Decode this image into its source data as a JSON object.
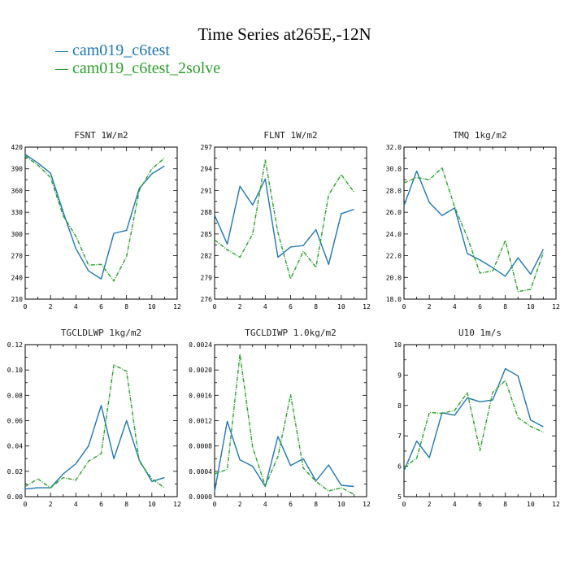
{
  "page": {
    "title": "Time Series at265E,-12N",
    "legend": [
      {
        "label": "cam019_c6test",
        "color": "#1f77b4"
      },
      {
        "label": "cam019_c6test_2solve",
        "color": "#2ca02c"
      }
    ]
  },
  "chart_data": [
    {
      "type": "line",
      "title": "FSNT   1W/m2",
      "x": [
        0,
        1,
        2,
        3,
        4,
        5,
        6,
        7,
        8,
        9,
        10,
        11
      ],
      "xlim": [
        0,
        12
      ],
      "xticks": [
        0,
        2,
        4,
        6,
        8,
        10,
        12
      ],
      "xticklabels": [
        "0",
        "2",
        "4",
        "6",
        "8",
        "10",
        "12"
      ],
      "ylim": [
        210,
        420
      ],
      "yticks": [
        210,
        240,
        270,
        300,
        330,
        360,
        390,
        420
      ],
      "yticklabels": [
        "210",
        "240",
        "270",
        "300",
        "330",
        "360",
        "390",
        "420"
      ],
      "series": [
        {
          "name": "cam019_c6test",
          "color": "#1f77b4",
          "dashed": false,
          "values": [
            410,
            398,
            384,
            330,
            280,
            249,
            238,
            301,
            305,
            363,
            383,
            394
          ]
        },
        {
          "name": "cam019_c6test_2solve",
          "color": "#2ca02c",
          "dashed": true,
          "values": [
            408,
            395,
            378,
            325,
            297,
            257,
            258,
            235,
            269,
            360,
            390,
            405
          ]
        }
      ]
    },
    {
      "type": "line",
      "title": "FLNT   1W/m2",
      "x": [
        0,
        1,
        2,
        3,
        4,
        5,
        6,
        7,
        8,
        9,
        10,
        11
      ],
      "xlim": [
        0,
        12
      ],
      "xticks": [
        0,
        2,
        4,
        6,
        8,
        10,
        12
      ],
      "xticklabels": [
        "0",
        "2",
        "4",
        "6",
        "8",
        "10",
        "12"
      ],
      "ylim": [
        276,
        297
      ],
      "yticks": [
        276,
        279,
        282,
        285,
        288,
        291,
        294,
        297
      ],
      "yticklabels": [
        "276",
        "279",
        "282",
        "285",
        "288",
        "291",
        "294",
        "297"
      ],
      "series": [
        {
          "name": "cam019_c6test",
          "color": "#1f77b4",
          "dashed": false,
          "values": [
            287.6,
            283.6,
            291.6,
            289,
            292.6,
            281.8,
            283.2,
            283.4,
            285.6,
            280.8,
            287.8,
            288.4
          ]
        },
        {
          "name": "cam019_c6test_2solve",
          "color": "#2ca02c",
          "dashed": true,
          "values": [
            284.2,
            282.8,
            281.8,
            285,
            295.2,
            285.2,
            278.8,
            282.6,
            280.4,
            290.4,
            293.2,
            290.8
          ]
        }
      ]
    },
    {
      "type": "line",
      "title": "TMQ   1kg/m2",
      "x": [
        0,
        1,
        2,
        3,
        4,
        5,
        6,
        7,
        8,
        9,
        10,
        11
      ],
      "xlim": [
        0,
        12
      ],
      "xticks": [
        0,
        2,
        4,
        6,
        8,
        10,
        12
      ],
      "xticklabels": [
        "0",
        "2",
        "4",
        "6",
        "8",
        "10",
        "12"
      ],
      "ylim": [
        18,
        32
      ],
      "yticks": [
        18,
        20,
        22,
        24,
        26,
        28,
        30,
        32
      ],
      "yticklabels": [
        "18.0",
        "20.0",
        "22.0",
        "24.0",
        "26.0",
        "28.0",
        "30.0",
        "32.0"
      ],
      "series": [
        {
          "name": "cam019_c6test",
          "color": "#1f77b4",
          "dashed": false,
          "values": [
            26.6,
            29.8,
            26.9,
            25.7,
            26.4,
            22.2,
            21.6,
            20.9,
            20.1,
            21.8,
            20.3,
            22.6
          ]
        },
        {
          "name": "cam019_c6test_2solve",
          "color": "#2ca02c",
          "dashed": true,
          "values": [
            28.7,
            29.2,
            29,
            30.1,
            26.5,
            23.7,
            20.4,
            20.6,
            23.4,
            18.7,
            18.9,
            22.3
          ]
        }
      ]
    },
    {
      "type": "line",
      "title": "TGCLDLWP   1kg/m2",
      "x": [
        0,
        1,
        2,
        3,
        4,
        5,
        6,
        7,
        8,
        9,
        10,
        11
      ],
      "xlim": [
        0,
        12
      ],
      "xticks": [
        0,
        2,
        4,
        6,
        8,
        10,
        12
      ],
      "xticklabels": [
        "0",
        "2",
        "4",
        "6",
        "8",
        "10",
        "12"
      ],
      "ylim": [
        0,
        0.12
      ],
      "yticks": [
        0,
        0.02,
        0.04,
        0.06,
        0.08,
        0.1,
        0.12
      ],
      "yticklabels": [
        "0.00",
        "0.02",
        "0.04",
        "0.06",
        "0.08",
        "0.10",
        "0.12"
      ],
      "series": [
        {
          "name": "cam019_c6test",
          "color": "#1f77b4",
          "dashed": false,
          "values": [
            0.006,
            0.007,
            0.007,
            0.018,
            0.026,
            0.04,
            0.072,
            0.03,
            0.06,
            0.029,
            0.012,
            0.015
          ]
        },
        {
          "name": "cam019_c6test_2solve",
          "color": "#2ca02c",
          "dashed": true,
          "values": [
            0.008,
            0.014,
            0.007,
            0.015,
            0.013,
            0.028,
            0.034,
            0.104,
            0.099,
            0.028,
            0.014,
            0.007
          ]
        }
      ]
    },
    {
      "type": "line",
      "title": "TGCLDIWP   1.0kg/m2",
      "x": [
        0,
        1,
        2,
        3,
        4,
        5,
        6,
        7,
        8,
        9,
        10,
        11
      ],
      "xlim": [
        0,
        12
      ],
      "xticks": [
        0,
        2,
        4,
        6,
        8,
        10,
        12
      ],
      "xticklabels": [
        "0",
        "2",
        "4",
        "6",
        "8",
        "10",
        "12"
      ],
      "ylim": [
        0,
        0.0024
      ],
      "yticks": [
        0,
        0.0004,
        0.0008,
        0.0012,
        0.0016,
        0.002,
        0.0024
      ],
      "yticklabels": [
        "0.0000",
        "0.0004",
        "0.0008",
        "0.0012",
        "0.0016",
        "0.0020",
        "0.0024"
      ],
      "series": [
        {
          "name": "cam019_c6test",
          "color": "#1f77b4",
          "dashed": false,
          "values": [
            8e-05,
            0.00119,
            0.00058,
            0.00048,
            0.00016,
            0.00095,
            0.00049,
            0.0006,
            0.00025,
            0.0005,
            0.00018,
            0.00016
          ]
        },
        {
          "name": "cam019_c6test_2solve",
          "color": "#2ca02c",
          "dashed": true,
          "values": [
            0.00036,
            0.00043,
            0.00225,
            0.00078,
            0.00017,
            0.00063,
            0.00161,
            0.00045,
            0.00024,
            9e-05,
            0.00014,
            4e-05
          ]
        }
      ]
    },
    {
      "type": "line",
      "title": "U10   1m/s",
      "x": [
        0,
        1,
        2,
        3,
        4,
        5,
        6,
        7,
        8,
        9,
        10,
        11
      ],
      "xlim": [
        0,
        12
      ],
      "xticks": [
        0,
        2,
        4,
        6,
        8,
        10,
        12
      ],
      "xticklabels": [
        "0",
        "2",
        "4",
        "6",
        "8",
        "10",
        "12"
      ],
      "ylim": [
        5,
        10
      ],
      "yticks": [
        5,
        6,
        7,
        8,
        9,
        10
      ],
      "yticklabels": [
        "5",
        "6",
        "7",
        "8",
        "9",
        "10"
      ],
      "series": [
        {
          "name": "cam019_c6test",
          "color": "#1f77b4",
          "dashed": false,
          "values": [
            5.85,
            6.83,
            6.28,
            7.76,
            7.68,
            8.25,
            8.12,
            8.18,
            9.21,
            8.97,
            7.52,
            7.3
          ]
        },
        {
          "name": "cam019_c6test_2solve",
          "color": "#2ca02c",
          "dashed": true,
          "values": [
            5.97,
            6.26,
            7.77,
            7.74,
            7.84,
            8.42,
            6.52,
            8.43,
            8.82,
            7.6,
            7.31,
            7.12
          ]
        }
      ]
    }
  ]
}
